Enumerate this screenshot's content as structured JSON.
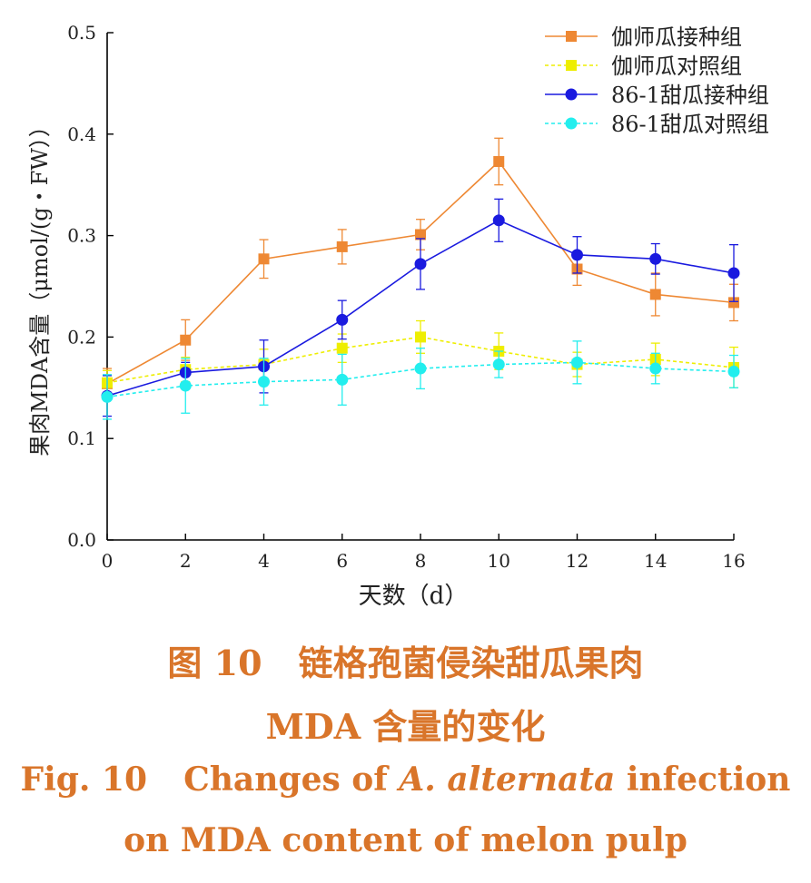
{
  "chart_data": {
    "type": "line",
    "xlabel": "天数（d）",
    "ylabel": "果肉MDA含量（μmol/(g・FW））",
    "xlim": [
      0,
      16
    ],
    "ylim": [
      0.0,
      0.5
    ],
    "x_ticks": [
      "0",
      "2",
      "4",
      "6",
      "8",
      "10",
      "12",
      "14",
      "16"
    ],
    "y_ticks": [
      "0.0",
      "0.1",
      "0.2",
      "0.3",
      "0.4",
      "0.5"
    ],
    "x": [
      0,
      2,
      4,
      6,
      8,
      10,
      12,
      14,
      16
    ],
    "legend_position": "top-right",
    "grid": false,
    "series": [
      {
        "name": "伽师瓜接种组",
        "color": "#ee8833",
        "marker": "square",
        "dashed": false,
        "values": [
          0.154,
          0.197,
          0.277,
          0.289,
          0.301,
          0.373,
          0.267,
          0.242,
          0.234
        ],
        "errors": [
          0.015,
          0.02,
          0.019,
          0.017,
          0.015,
          0.023,
          0.016,
          0.021,
          0.018
        ]
      },
      {
        "name": "伽师瓜对照组",
        "color": "#eeee00",
        "marker": "square",
        "dashed": true,
        "values": [
          0.155,
          0.168,
          0.173,
          0.189,
          0.2,
          0.186,
          0.173,
          0.178,
          0.17
        ],
        "errors": [
          0.012,
          0.012,
          0.015,
          0.014,
          0.016,
          0.018,
          0.012,
          0.016,
          0.02
        ]
      },
      {
        "name": "86-1甜瓜接种组",
        "color": "#1a1adf",
        "marker": "circle",
        "dashed": false,
        "values": [
          0.142,
          0.165,
          0.171,
          0.217,
          0.272,
          0.315,
          0.281,
          0.277,
          0.263
        ],
        "errors": [
          0.02,
          0.01,
          0.026,
          0.019,
          0.025,
          0.021,
          0.018,
          0.015,
          0.028
        ]
      },
      {
        "name": "86-1甜瓜对照组",
        "color": "#22eeee",
        "marker": "circle",
        "dashed": true,
        "values": [
          0.141,
          0.152,
          0.156,
          0.158,
          0.169,
          0.173,
          0.175,
          0.169,
          0.166
        ],
        "errors": [
          0.022,
          0.027,
          0.023,
          0.025,
          0.02,
          0.013,
          0.021,
          0.015,
          0.016
        ]
      }
    ]
  },
  "caption": {
    "cn_fig": "图 10",
    "cn_title_line1": "链格孢菌侵染甜瓜果肉",
    "cn_title_line2": "MDA 含量的变化",
    "en_fig": "Fig. 10",
    "en_title_a": "Changes of ",
    "en_title_species": "A. alternata",
    "en_title_b": " infection",
    "en_title_line2": "on MDA content of melon pulp"
  }
}
